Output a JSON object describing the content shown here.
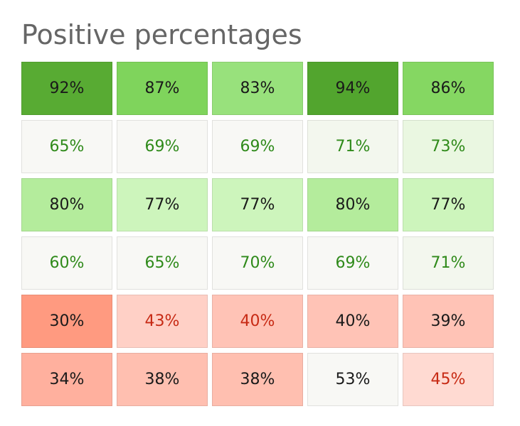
{
  "title": "Positive percentages",
  "chart_data": {
    "type": "heatmap",
    "title": "Positive percentages",
    "rows": [
      [
        "92%",
        "87%",
        "83%",
        "94%",
        "86%"
      ],
      [
        "65%",
        "69%",
        "69%",
        "71%",
        "73%"
      ],
      [
        "80%",
        "77%",
        "77%",
        "80%",
        "77%"
      ],
      [
        "60%",
        "65%",
        "70%",
        "69%",
        "71%"
      ],
      [
        "30%",
        "43%",
        "40%",
        "40%",
        "39%"
      ],
      [
        "34%",
        "38%",
        "38%",
        "53%",
        "45%"
      ]
    ],
    "cell_styles": [
      [
        [
          "#58ab33",
          "#1a1a1a"
        ],
        [
          "#7fd45c",
          "#1a1a1a"
        ],
        [
          "#98e17c",
          "#1a1a1a"
        ],
        [
          "#52a52e",
          "#1a1a1a"
        ],
        [
          "#85d762",
          "#1a1a1a"
        ]
      ],
      [
        [
          "#f8f8f5",
          "#2f8a1a"
        ],
        [
          "#f8f8f5",
          "#2f8a1a"
        ],
        [
          "#f8f8f5",
          "#2f8a1a"
        ],
        [
          "#f3f7ee",
          "#2f8a1a"
        ],
        [
          "#eaf7e1",
          "#2f8a1a"
        ]
      ],
      [
        [
          "#b4ec9c",
          "#1a1a1a"
        ],
        [
          "#cdf5bc",
          "#1a1a1a"
        ],
        [
          "#cdf5bc",
          "#1a1a1a"
        ],
        [
          "#b4ec9c",
          "#1a1a1a"
        ],
        [
          "#cdf5bc",
          "#1a1a1a"
        ]
      ],
      [
        [
          "#f8f8f5",
          "#2f8a1a"
        ],
        [
          "#f8f8f5",
          "#2f8a1a"
        ],
        [
          "#f8f8f5",
          "#2f8a1a"
        ],
        [
          "#f8f8f5",
          "#2f8a1a"
        ],
        [
          "#f3f7ee",
          "#2f8a1a"
        ]
      ],
      [
        [
          "#ff9a80",
          "#1a1a1a"
        ],
        [
          "#ffd0c6",
          "#c72a14"
        ],
        [
          "#ffc3b6",
          "#c72a14"
        ],
        [
          "#ffc3b6",
          "#1a1a1a"
        ],
        [
          "#ffc3b6",
          "#1a1a1a"
        ]
      ],
      [
        [
          "#ffb09e",
          "#1a1a1a"
        ],
        [
          "#ffbfb0",
          "#1a1a1a"
        ],
        [
          "#ffbfb0",
          "#1a1a1a"
        ],
        [
          "#f8f8f5",
          "#1a1a1a"
        ],
        [
          "#ffdad2",
          "#c72a14"
        ]
      ]
    ]
  }
}
